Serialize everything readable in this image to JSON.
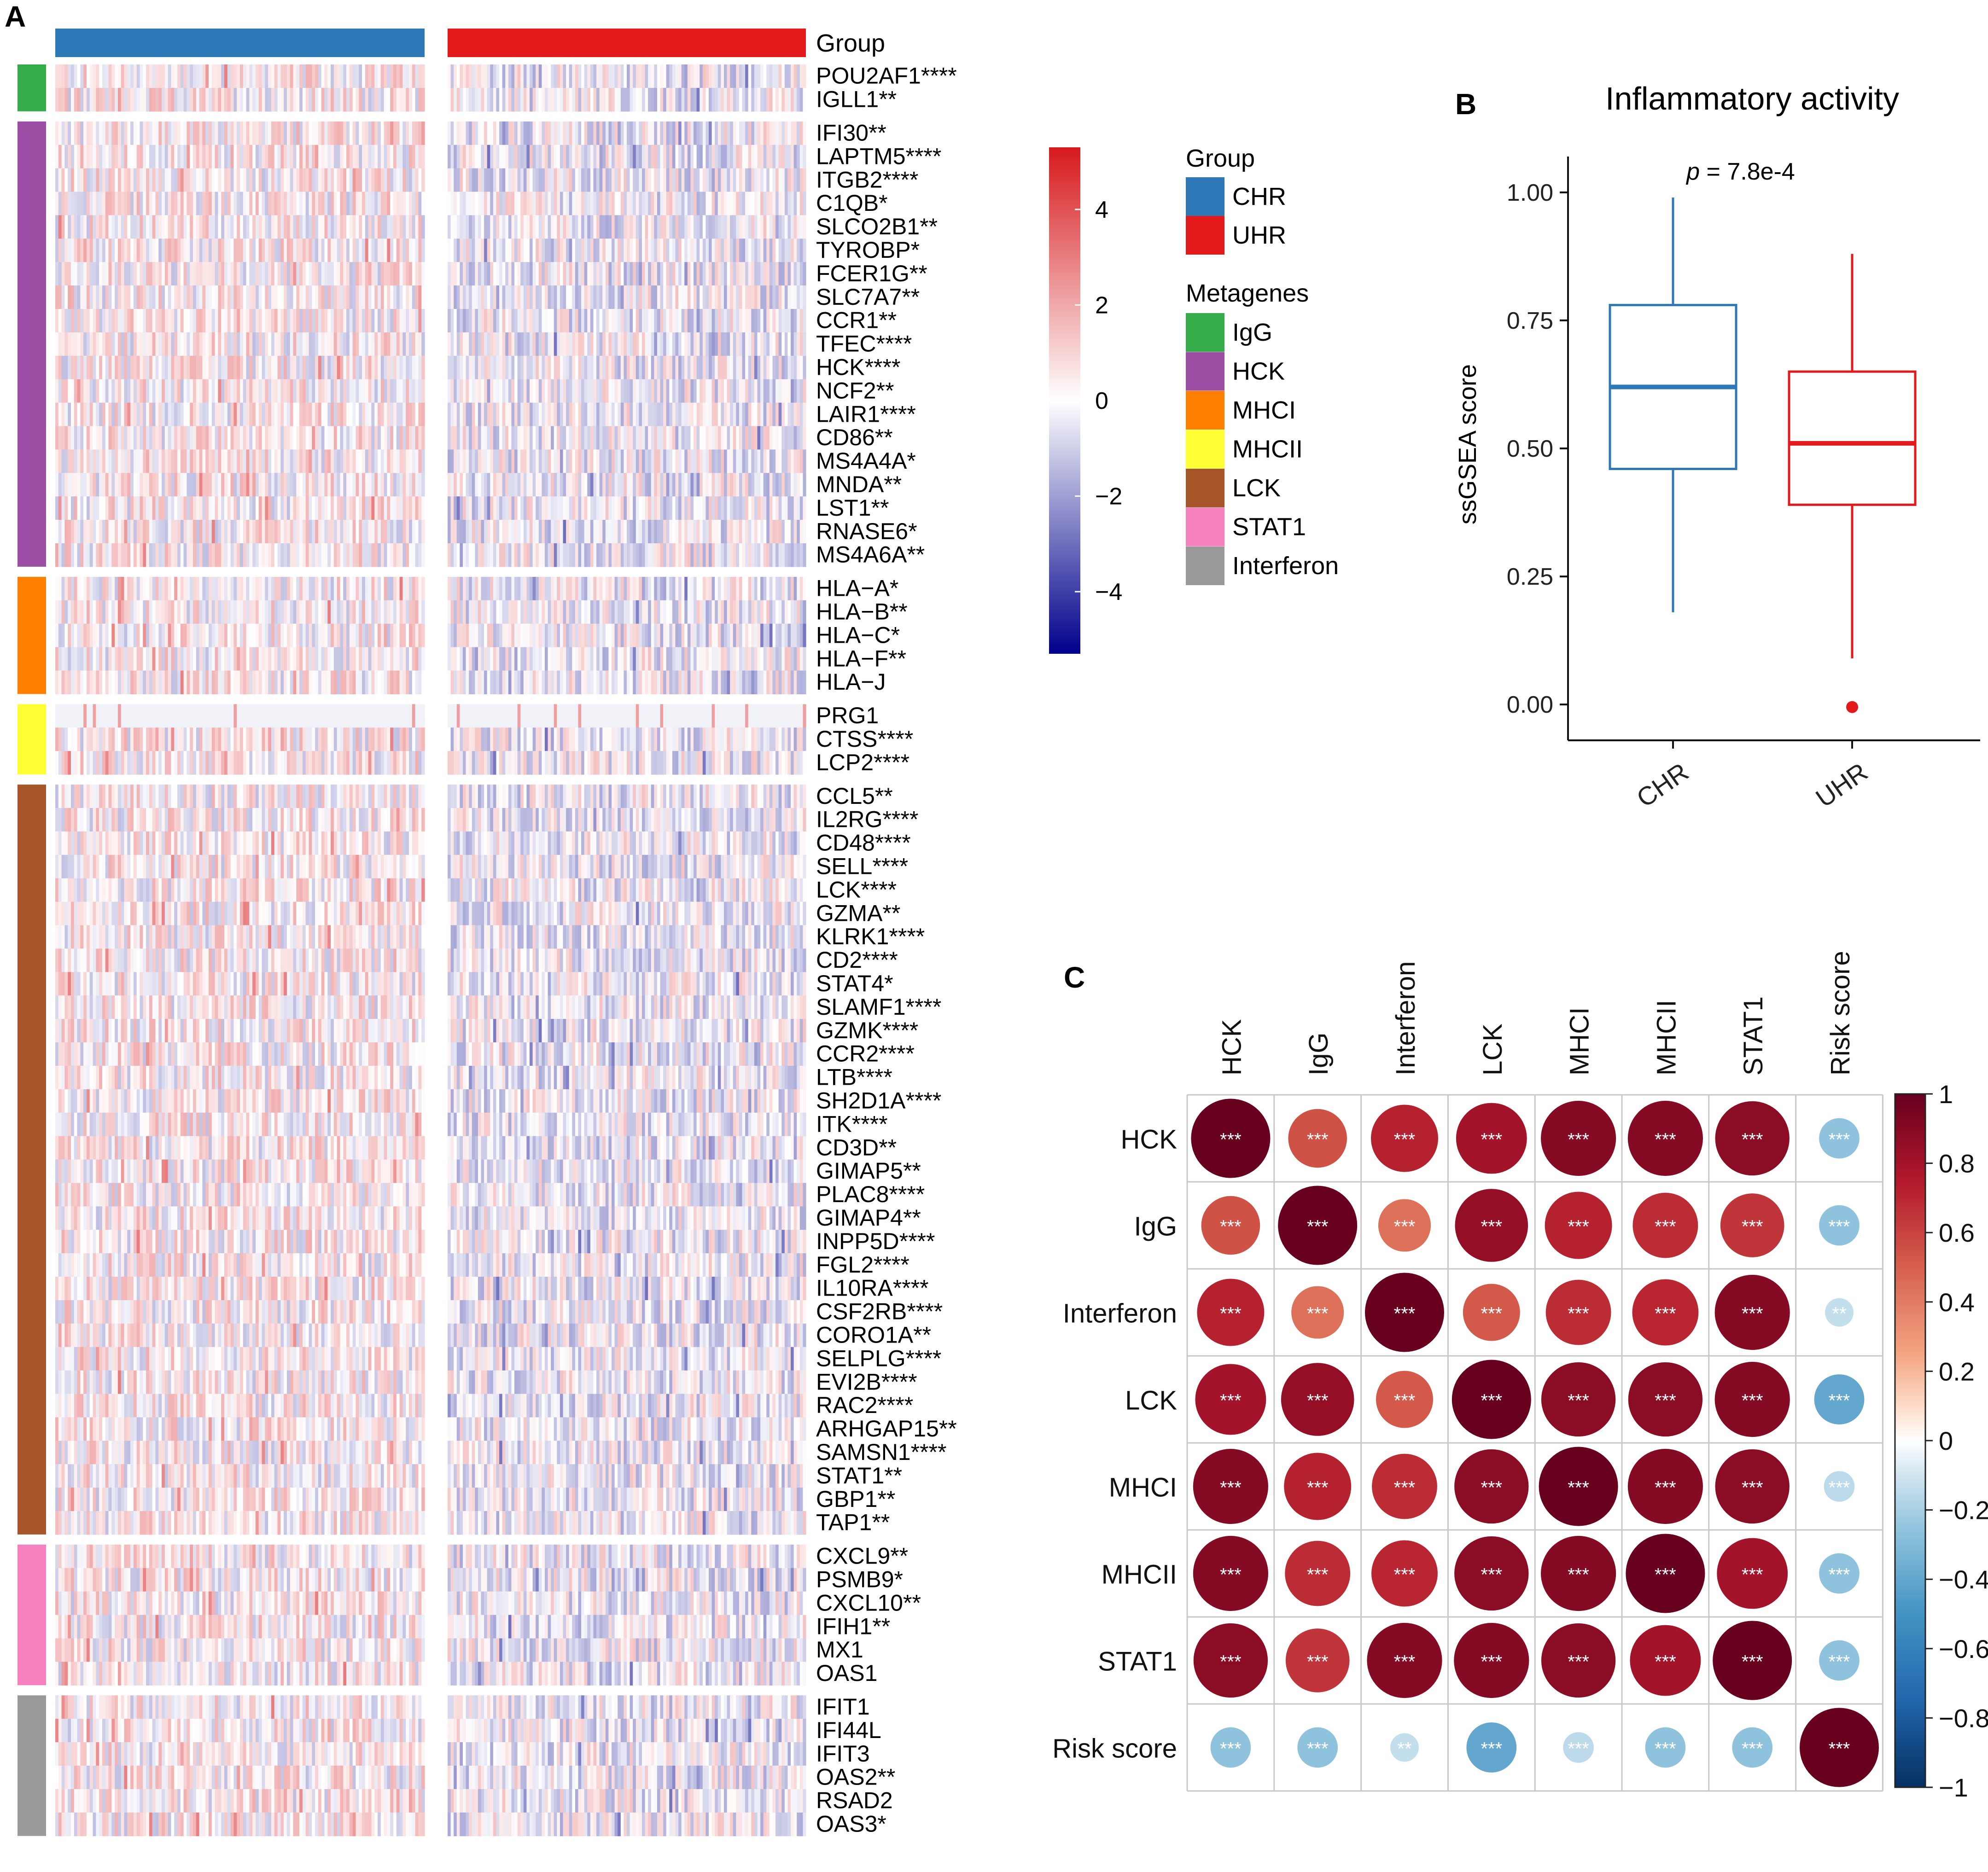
{
  "colors": {
    "CHR": "#2f78b7",
    "UHR": "#e31a1c",
    "IgG": "#35ab4a",
    "HCK": "#9b4ea3",
    "MHCI": "#ff7f00",
    "MHCII": "#ffff33",
    "LCK": "#a65628",
    "STAT1": "#f781bf",
    "Interferon": "#999999"
  },
  "panel_labels": {
    "a": "A",
    "b": "B",
    "c": "C"
  },
  "heatmap": {
    "group_title": "Group",
    "groups": [
      "CHR",
      "UHR"
    ],
    "samples_per_group": 118,
    "blocks": [
      {
        "metagene": "IgG",
        "genes": [
          "POU2AF1****",
          "IGLL1**"
        ]
      },
      {
        "metagene": "HCK",
        "genes": [
          "IFI30**",
          "LAPTM5****",
          "ITGB2****",
          "C1QB*",
          "SLCO2B1**",
          "TYROBP*",
          "FCER1G**",
          "SLC7A7**",
          "CCR1**",
          "TFEC****",
          "HCK****",
          "NCF2**",
          "LAIR1****",
          "CD86**",
          "MS4A4A*",
          "MNDA**",
          "LST1**",
          "RNASE6*",
          "MS4A6A**"
        ]
      },
      {
        "metagene": "MHCI",
        "genes": [
          "HLA−A*",
          "HLA−B**",
          "HLA−C*",
          "HLA−F**",
          "HLA−J"
        ]
      },
      {
        "metagene": "MHCII",
        "genes": [
          "PRG1",
          "CTSS****",
          "LCP2****"
        ]
      },
      {
        "metagene": "LCK",
        "genes": [
          "CCL5**",
          "IL2RG****",
          "CD48****",
          "SELL****",
          "LCK****",
          "GZMA**",
          "KLRK1****",
          "CD2****",
          "STAT4*",
          "SLAMF1****",
          "GZMK****",
          "CCR2****",
          "LTB****",
          "SH2D1A****",
          "ITK****",
          "CD3D**",
          "GIMAP5**",
          "PLAC8****",
          "GIMAP4**",
          "INPP5D****",
          "FGL2****",
          "IL10RA****",
          "CSF2RB****",
          "CORO1A**",
          "SELPLG****",
          "EVI2B****",
          "RAC2****",
          "ARHGAP15**",
          "SAMSN1****",
          "STAT1**",
          "GBP1**",
          "TAP1**"
        ]
      },
      {
        "metagene": "STAT1",
        "genes": [
          "CXCL9**",
          "PSMB9*",
          "CXCL10**",
          "IFIH1**",
          "MX1",
          "OAS1"
        ]
      },
      {
        "metagene": "Interferon",
        "genes": [
          "IFIT1",
          "IFI44L",
          "IFIT3",
          "OAS2**",
          "RSAD2",
          "OAS3*"
        ]
      }
    ],
    "colorbar": {
      "ticks": [
        4,
        2,
        0,
        -2,
        -4
      ],
      "tick_labels": [
        "4",
        "2",
        "0",
        "−2",
        "−4"
      ],
      "range": [
        -5.3,
        5.3
      ]
    },
    "legend": {
      "group_title": "Group",
      "group_items": [
        "CHR",
        "UHR"
      ],
      "metagene_title": "Metagenes",
      "metagene_items": [
        "IgG",
        "HCK",
        "MHCI",
        "MHCII",
        "LCK",
        "STAT1",
        "Interferon"
      ]
    }
  },
  "chart_data": [
    {
      "type": "box",
      "title": "Inflammatory activity",
      "annotation": "p = 7.8e-4",
      "xlabel": "",
      "ylabel": "ssGSEA score",
      "categories": [
        "CHR",
        "UHR"
      ],
      "ylim": [
        -0.07,
        1.07
      ],
      "y_ticks": [
        0.0,
        0.25,
        0.5,
        0.75,
        1.0
      ],
      "y_tick_labels": [
        "0.00",
        "0.25",
        "0.50",
        "0.75",
        "1.00"
      ],
      "boxes": [
        {
          "name": "CHR",
          "whisker_low": 0.18,
          "q1": 0.46,
          "median": 0.62,
          "q3": 0.78,
          "whisker_high": 0.99,
          "outliers": []
        },
        {
          "name": "UHR",
          "whisker_low": 0.09,
          "q1": 0.39,
          "median": 0.51,
          "q3": 0.65,
          "whisker_high": 0.88,
          "outliers": [
            -0.005
          ]
        }
      ]
    },
    {
      "type": "heatmap",
      "subtype": "correlation-circles",
      "labels": [
        "HCK",
        "IgG",
        "Interferon",
        "LCK",
        "MHCI",
        "MHCII",
        "STAT1",
        "Risk score"
      ],
      "matrix": [
        [
          1.0,
          0.55,
          0.72,
          0.8,
          0.9,
          0.9,
          0.88,
          -0.26
        ],
        [
          0.55,
          1.0,
          0.44,
          0.85,
          0.72,
          0.68,
          0.65,
          -0.26
        ],
        [
          0.72,
          0.44,
          1.0,
          0.52,
          0.68,
          0.7,
          0.9,
          -0.13
        ],
        [
          0.8,
          0.85,
          0.52,
          1.0,
          0.88,
          0.88,
          0.9,
          -0.4
        ],
        [
          0.9,
          0.72,
          0.68,
          0.88,
          1.0,
          0.9,
          0.88,
          -0.15
        ],
        [
          0.9,
          0.68,
          0.7,
          0.88,
          0.9,
          1.0,
          0.8,
          -0.26
        ],
        [
          0.88,
          0.65,
          0.9,
          0.9,
          0.88,
          0.8,
          1.0,
          -0.26
        ],
        [
          -0.26,
          -0.26,
          -0.13,
          -0.4,
          -0.15,
          -0.26,
          -0.26,
          1.0
        ]
      ],
      "significance": [
        [
          "***",
          "***",
          "***",
          "***",
          "***",
          "***",
          "***",
          "***"
        ],
        [
          "***",
          "***",
          "***",
          "***",
          "***",
          "***",
          "***",
          "***"
        ],
        [
          "***",
          "***",
          "***",
          "***",
          "***",
          "***",
          "***",
          "**"
        ],
        [
          "***",
          "***",
          "***",
          "***",
          "***",
          "***",
          "***",
          "***"
        ],
        [
          "***",
          "***",
          "***",
          "***",
          "***",
          "***",
          "***",
          "***"
        ],
        [
          "***",
          "***",
          "***",
          "***",
          "***",
          "***",
          "***",
          "***"
        ],
        [
          "***",
          "***",
          "***",
          "***",
          "***",
          "***",
          "***",
          "***"
        ],
        [
          "***",
          "***",
          "**",
          "***",
          "***",
          "***",
          "***",
          "***"
        ]
      ],
      "colorbar": {
        "range": [
          -1,
          1
        ],
        "ticks": [
          1,
          0.8,
          0.6,
          0.4,
          0.2,
          0,
          -0.2,
          -0.4,
          -0.6,
          -0.8,
          -1
        ],
        "tick_labels": [
          "1",
          "0.8",
          "0.6",
          "0.4",
          "0.2",
          "0",
          "−0.2",
          "−0.4",
          "−0.6",
          "−0.8",
          "−1"
        ]
      }
    }
  ]
}
